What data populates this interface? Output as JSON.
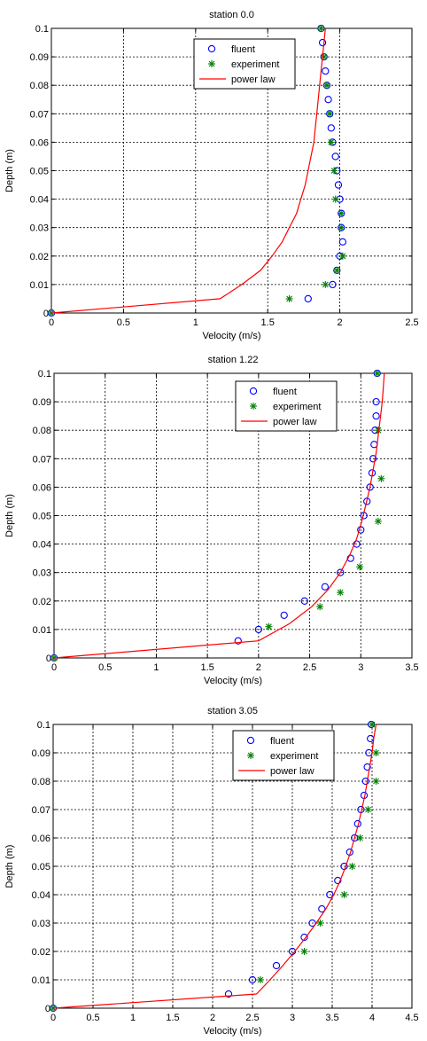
{
  "colors": {
    "fluent": "#0000ff",
    "experiment": "#008000",
    "power_law": "#ff0000",
    "grid": "#000000",
    "background": "#ffffff"
  },
  "chart_data": [
    {
      "type": "scatter",
      "title": "station 0.0",
      "xlabel": "Velocity (m/s)",
      "ylabel": "Depth (m)",
      "xlim": [
        0,
        2.5
      ],
      "ylim": [
        0,
        0.1
      ],
      "xticks": [
        "0",
        "0.5",
        "1",
        "1.5",
        "2",
        "2.5"
      ],
      "yticks": [
        "0",
        "0.01",
        "0.02",
        "0.03",
        "0.04",
        "0.05",
        "0.06",
        "0.07",
        "0.08",
        "0.09",
        "0.1"
      ],
      "grid": true,
      "legend_position": "top-center",
      "series": [
        {
          "name": "fluent",
          "marker": "circle",
          "points": [
            [
              0,
              0
            ],
            [
              1.78,
              0.005
            ],
            [
              1.95,
              0.01
            ],
            [
              1.98,
              0.015
            ],
            [
              2.0,
              0.02
            ],
            [
              2.02,
              0.025
            ],
            [
              2.01,
              0.03
            ],
            [
              2.01,
              0.035
            ],
            [
              2.0,
              0.04
            ],
            [
              1.99,
              0.045
            ],
            [
              1.98,
              0.05
            ],
            [
              1.97,
              0.055
            ],
            [
              1.95,
              0.06
            ],
            [
              1.94,
              0.065
            ],
            [
              1.93,
              0.07
            ],
            [
              1.92,
              0.075
            ],
            [
              1.91,
              0.08
            ],
            [
              1.9,
              0.085
            ],
            [
              1.89,
              0.09
            ],
            [
              1.88,
              0.095
            ],
            [
              1.87,
              0.1
            ]
          ]
        },
        {
          "name": "experiment",
          "marker": "star",
          "points": [
            [
              0,
              0
            ],
            [
              1.65,
              0.005
            ],
            [
              1.9,
              0.01
            ],
            [
              1.98,
              0.015
            ],
            [
              2.02,
              0.02
            ],
            [
              2.01,
              0.03
            ],
            [
              2.01,
              0.035
            ],
            [
              1.97,
              0.04
            ],
            [
              1.96,
              0.05
            ],
            [
              1.94,
              0.06
            ],
            [
              1.93,
              0.07
            ],
            [
              1.91,
              0.08
            ],
            [
              1.89,
              0.09
            ],
            [
              1.87,
              0.1
            ]
          ]
        },
        {
          "name": "power law",
          "marker": "line",
          "points": [
            [
              0,
              0
            ],
            [
              1.17,
              0.005
            ],
            [
              1.32,
              0.01
            ],
            [
              1.45,
              0.015
            ],
            [
              1.53,
              0.02
            ],
            [
              1.6,
              0.025
            ],
            [
              1.65,
              0.03
            ],
            [
              1.7,
              0.035
            ],
            [
              1.73,
              0.04
            ],
            [
              1.76,
              0.045
            ],
            [
              1.78,
              0.05
            ],
            [
              1.8,
              0.055
            ],
            [
              1.82,
              0.06
            ],
            [
              1.83,
              0.065
            ],
            [
              1.84,
              0.07
            ],
            [
              1.85,
              0.075
            ],
            [
              1.86,
              0.08
            ],
            [
              1.87,
              0.085
            ],
            [
              1.88,
              0.09
            ],
            [
              1.89,
              0.095
            ],
            [
              1.9,
              0.1
            ]
          ]
        }
      ]
    },
    {
      "type": "scatter",
      "title": "station 1.22",
      "xlabel": "Velocity (m/s)",
      "ylabel": "Depth (m)",
      "xlim": [
        0,
        3.5
      ],
      "ylim": [
        0,
        0.1
      ],
      "xticks": [
        "0",
        "0.5",
        "1",
        "1.5",
        "2",
        "2.5",
        "3",
        "3.5"
      ],
      "yticks": [
        "0",
        "0.01",
        "0.02",
        "0.03",
        "0.04",
        "0.05",
        "0.06",
        "0.07",
        "0.08",
        "0.09",
        "0.1"
      ],
      "grid": true,
      "legend_position": "top-right",
      "series": [
        {
          "name": "fluent",
          "marker": "circle",
          "points": [
            [
              0,
              0
            ],
            [
              1.8,
              0.006
            ],
            [
              2.0,
              0.01
            ],
            [
              2.25,
              0.015
            ],
            [
              2.45,
              0.02
            ],
            [
              2.65,
              0.025
            ],
            [
              2.8,
              0.03
            ],
            [
              2.9,
              0.035
            ],
            [
              2.96,
              0.04
            ],
            [
              3.0,
              0.045
            ],
            [
              3.03,
              0.05
            ],
            [
              3.06,
              0.055
            ],
            [
              3.09,
              0.06
            ],
            [
              3.11,
              0.065
            ],
            [
              3.12,
              0.07
            ],
            [
              3.13,
              0.075
            ],
            [
              3.14,
              0.08
            ],
            [
              3.15,
              0.085
            ],
            [
              3.15,
              0.09
            ],
            [
              3.16,
              0.1
            ]
          ]
        },
        {
          "name": "experiment",
          "marker": "star",
          "points": [
            [
              0,
              0
            ],
            [
              2.1,
              0.011
            ],
            [
              2.6,
              0.018
            ],
            [
              2.8,
              0.023
            ],
            [
              2.99,
              0.032
            ],
            [
              3.17,
              0.048
            ],
            [
              3.2,
              0.063
            ],
            [
              3.17,
              0.08
            ],
            [
              3.16,
              0.1
            ]
          ]
        },
        {
          "name": "power law",
          "marker": "line",
          "points": [
            [
              0,
              0
            ],
            [
              2.0,
              0.006
            ],
            [
              2.3,
              0.012
            ],
            [
              2.52,
              0.018
            ],
            [
              2.68,
              0.024
            ],
            [
              2.8,
              0.03
            ],
            [
              2.89,
              0.036
            ],
            [
              2.96,
              0.042
            ],
            [
              3.01,
              0.048
            ],
            [
              3.05,
              0.054
            ],
            [
              3.09,
              0.06
            ],
            [
              3.12,
              0.066
            ],
            [
              3.15,
              0.072
            ],
            [
              3.17,
              0.078
            ],
            [
              3.19,
              0.084
            ],
            [
              3.21,
              0.09
            ],
            [
              3.22,
              0.095
            ],
            [
              3.23,
              0.1
            ]
          ]
        }
      ]
    },
    {
      "type": "scatter",
      "title": "station 3.05",
      "xlabel": "Velocity (m/s)",
      "ylabel": "Depth (m)",
      "xlim": [
        0,
        4.5
      ],
      "ylim": [
        0,
        0.1
      ],
      "xticks": [
        "0",
        "0.5",
        "1",
        "1.5",
        "2",
        "2.5",
        "3",
        "3.5",
        "4",
        "4.5"
      ],
      "yticks": [
        "0",
        "0.01",
        "0.02",
        "0.03",
        "0.04",
        "0.05",
        "0.06",
        "0.07",
        "0.08",
        "0.09",
        "0.1"
      ],
      "grid": true,
      "legend_position": "top-center",
      "series": [
        {
          "name": "fluent",
          "marker": "circle",
          "points": [
            [
              0,
              0
            ],
            [
              2.2,
              0.005
            ],
            [
              2.5,
              0.01
            ],
            [
              2.8,
              0.015
            ],
            [
              3.0,
              0.02
            ],
            [
              3.15,
              0.025
            ],
            [
              3.25,
              0.03
            ],
            [
              3.37,
              0.035
            ],
            [
              3.47,
              0.04
            ],
            [
              3.57,
              0.045
            ],
            [
              3.65,
              0.05
            ],
            [
              3.72,
              0.055
            ],
            [
              3.78,
              0.06
            ],
            [
              3.82,
              0.065
            ],
            [
              3.86,
              0.07
            ],
            [
              3.9,
              0.075
            ],
            [
              3.92,
              0.08
            ],
            [
              3.94,
              0.085
            ],
            [
              3.96,
              0.09
            ],
            [
              3.98,
              0.095
            ],
            [
              3.99,
              0.1
            ]
          ]
        },
        {
          "name": "experiment",
          "marker": "star",
          "points": [
            [
              0,
              0
            ],
            [
              2.6,
              0.01
            ],
            [
              3.15,
              0.02
            ],
            [
              3.35,
              0.03
            ],
            [
              3.65,
              0.04
            ],
            [
              3.75,
              0.05
            ],
            [
              3.85,
              0.06
            ],
            [
              3.95,
              0.07
            ],
            [
              4.05,
              0.08
            ],
            [
              4.05,
              0.09
            ],
            [
              4.0,
              0.1
            ]
          ]
        },
        {
          "name": "power law",
          "marker": "line",
          "points": [
            [
              0,
              0
            ],
            [
              2.55,
              0.005
            ],
            [
              2.72,
              0.01
            ],
            [
              2.88,
              0.015
            ],
            [
              3.03,
              0.02
            ],
            [
              3.17,
              0.025
            ],
            [
              3.3,
              0.03
            ],
            [
              3.42,
              0.035
            ],
            [
              3.52,
              0.04
            ],
            [
              3.6,
              0.045
            ],
            [
              3.67,
              0.05
            ],
            [
              3.73,
              0.055
            ],
            [
              3.78,
              0.06
            ],
            [
              3.83,
              0.065
            ],
            [
              3.87,
              0.07
            ],
            [
              3.91,
              0.075
            ],
            [
              3.94,
              0.08
            ],
            [
              3.97,
              0.085
            ],
            [
              4.0,
              0.09
            ],
            [
              4.02,
              0.095
            ],
            [
              4.05,
              0.1
            ]
          ]
        }
      ]
    }
  ]
}
